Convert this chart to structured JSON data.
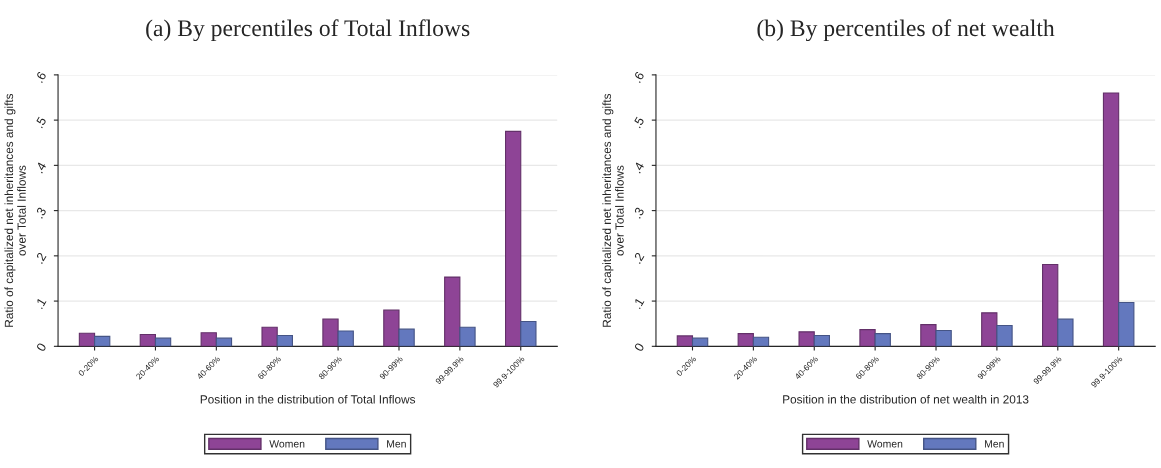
{
  "chart_data": [
    {
      "type": "bar",
      "title": "(a) By percentiles of Total Inflows",
      "xlabel": "Position in the distribution of Total Inflows",
      "ylabel": "Ratio of capitalized net inheritances and gifts\nover Total Inflows",
      "categories": [
        "0-20%",
        "20-40%",
        "40-60%",
        "60-80%",
        "80-90%",
        "90-99%",
        "99-99.9%",
        "99.9-100%"
      ],
      "series": [
        {
          "name": "Women",
          "color": "#8e4496",
          "values": [
            0.029,
            0.026,
            0.03,
            0.042,
            0.06,
            0.08,
            0.153,
            0.475
          ]
        },
        {
          "name": "Men",
          "color": "#6378be",
          "values": [
            0.022,
            0.018,
            0.018,
            0.024,
            0.034,
            0.038,
            0.042,
            0.055
          ]
        }
      ],
      "ylim": [
        0,
        0.6
      ],
      "yticks": [
        0,
        {
          "value": 0.1,
          "label": ".1"
        },
        {
          "value": 0.2,
          "label": ".2"
        },
        {
          "value": 0.3,
          "label": ".3"
        },
        {
          "value": 0.4,
          "label": ".4"
        },
        {
          "value": 0.5,
          "label": ".5"
        },
        {
          "value": 0.6,
          "label": ".6"
        }
      ],
      "grid": "y",
      "legend": "bottom"
    },
    {
      "type": "bar",
      "title": "(b) By percentiles of net wealth",
      "xlabel": "Position in the distribution of net wealth in 2013",
      "ylabel": "Ratio of capitalized net inheritances and gifts\nover Total Inflows",
      "categories": [
        "0-20%",
        "20-40%",
        "40-60%",
        "60-80%",
        "80-90%",
        "90-99%",
        "99-99.9%",
        "99.9-100%"
      ],
      "series": [
        {
          "name": "Women",
          "color": "#8e4496",
          "values": [
            0.023,
            0.028,
            0.032,
            0.037,
            0.048,
            0.074,
            0.181,
            0.56
          ]
        },
        {
          "name": "Men",
          "color": "#6378be",
          "values": [
            0.018,
            0.02,
            0.024,
            0.028,
            0.035,
            0.046,
            0.06,
            0.097
          ]
        }
      ],
      "ylim": [
        0,
        0.6
      ],
      "yticks": [
        0,
        {
          "value": 0.1,
          "label": ".1"
        },
        {
          "value": 0.2,
          "label": ".2"
        },
        {
          "value": 0.3,
          "label": ".3"
        },
        {
          "value": 0.4,
          "label": ".4"
        },
        {
          "value": 0.5,
          "label": ".5"
        },
        {
          "value": 0.6,
          "label": ".6"
        }
      ],
      "grid": "y",
      "legend": "bottom"
    }
  ]
}
